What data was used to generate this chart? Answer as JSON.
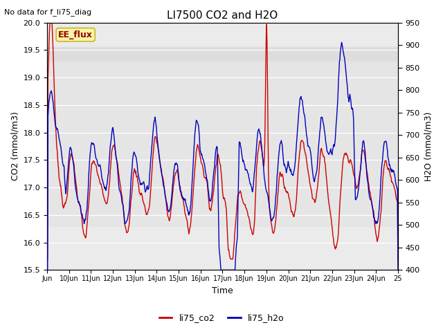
{
  "title": "LI7500 CO2 and H2O",
  "top_left_note": "No data for f_li75_diag",
  "annotation_box": "EE_flux",
  "xlabel": "Time",
  "ylabel_left": "CO2 (mmol/m3)",
  "ylabel_right": "H2O (mmol/m3)",
  "ylim_left": [
    15.5,
    20.0
  ],
  "ylim_right": [
    400,
    950
  ],
  "yticks_left": [
    15.5,
    16.0,
    16.5,
    17.0,
    17.5,
    18.0,
    18.5,
    19.0,
    19.5,
    20.0
  ],
  "yticks_right": [
    400,
    450,
    500,
    550,
    600,
    650,
    700,
    750,
    800,
    850,
    900,
    950
  ],
  "legend": [
    "li75_co2",
    "li75_h2o"
  ],
  "legend_colors": [
    "#cc0000",
    "#0000bb"
  ],
  "background_color": "#ffffff",
  "plot_bg_light": "#ebebeb",
  "plot_bg_dark": "#d8d8d8",
  "band_lo": 19.3,
  "band_hi": 19.55,
  "x_start": 9.0,
  "x_end": 25.0,
  "xtick_positions": [
    9,
    10,
    11,
    12,
    13,
    14,
    15,
    16,
    17,
    18,
    19,
    20,
    21,
    22,
    23,
    24,
    25
  ],
  "xtick_labels": [
    "Jun",
    "10Jun",
    "11Jun",
    "12Jun",
    "13Jun",
    "14Jun",
    "15Jun",
    "16Jun",
    "17Jun",
    "18Jun",
    "19Jun",
    "20Jun",
    "21Jun",
    "22Jun",
    "23Jun",
    "24Jun",
    "25"
  ],
  "linewidth": 1.0
}
